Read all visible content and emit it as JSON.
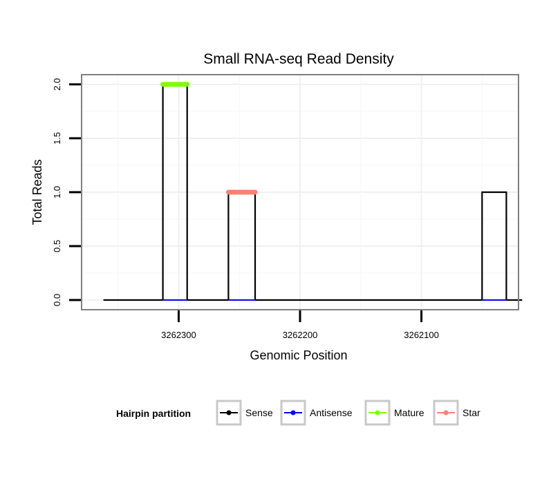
{
  "chart_data": {
    "type": "line",
    "title": "Small RNA-seq Read Density",
    "xlabel": "Genomic Position",
    "ylabel": "Total Reads",
    "x_reversed": true,
    "xlim": [
      3262020,
      3262380
    ],
    "ylim": [
      -0.09,
      2.09
    ],
    "x_ticks": [
      3262300,
      3262200,
      3262100
    ],
    "x_tick_labels": [
      "3262300",
      "3262200",
      "3262100"
    ],
    "y_ticks": [
      0,
      0.5,
      1,
      1.5,
      2
    ],
    "y_tick_labels": [
      "0.0",
      "0.5",
      "1.0",
      "1.5",
      "2.0"
    ],
    "grid": true,
    "series": [
      {
        "name": "Sense",
        "color": "#000000",
        "points": [
          [
            3262362,
            0
          ],
          [
            3262313,
            0
          ],
          [
            3262313,
            2
          ],
          [
            3262293,
            2
          ],
          [
            3262293,
            0
          ],
          [
            3262259,
            0
          ],
          [
            3262259,
            1
          ],
          [
            3262237,
            1
          ],
          [
            3262237,
            0
          ],
          [
            3262050,
            0
          ],
          [
            3262050,
            1
          ],
          [
            3262030,
            1
          ],
          [
            3262030,
            0
          ],
          [
            3262017,
            0
          ]
        ]
      },
      {
        "name": "Antisense",
        "color": "#0000FF",
        "points": [
          [
            3262313,
            0
          ],
          [
            3262293,
            0
          ],
          [
            3262292,
            null
          ],
          [
            3262259,
            0
          ],
          [
            3262237,
            0
          ],
          [
            3262236,
            null
          ],
          [
            3262050,
            0
          ],
          [
            3262030,
            0
          ]
        ]
      },
      {
        "name": "Mature",
        "color": "#7FFF00",
        "points": [
          [
            3262313,
            2
          ],
          [
            3262293,
            2
          ]
        ]
      },
      {
        "name": "Star",
        "color": "#FA8072",
        "points": [
          [
            3262259,
            1
          ],
          [
            3262237,
            1
          ]
        ]
      }
    ],
    "legend": {
      "title": "Hairpin partition",
      "position": "bottom",
      "items": [
        {
          "label": "Sense",
          "color": "#000000"
        },
        {
          "label": "Antisense",
          "color": "#0000FF"
        },
        {
          "label": "Mature",
          "color": "#7FFF00"
        },
        {
          "label": "Star",
          "color": "#FA8072"
        }
      ]
    }
  }
}
